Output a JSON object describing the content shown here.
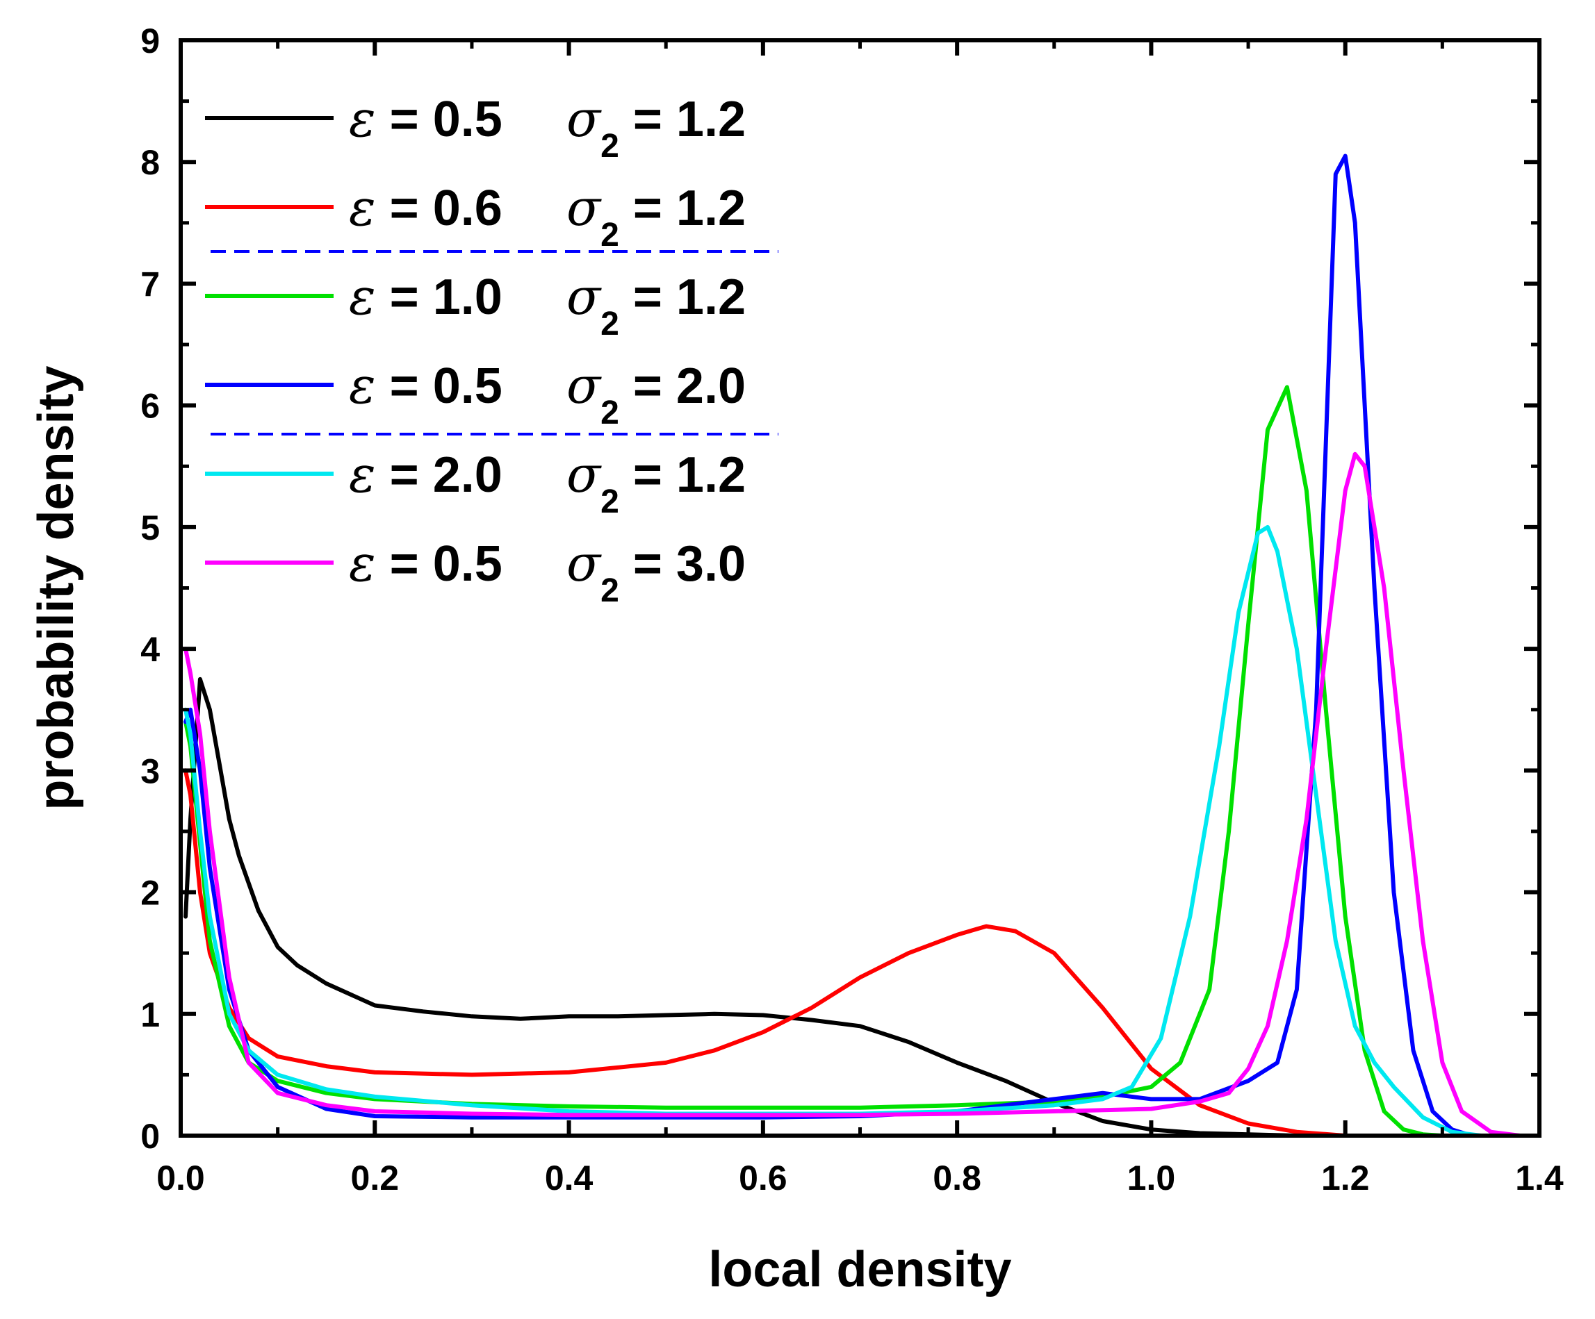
{
  "chart_data": {
    "type": "line",
    "title": "",
    "xlabel": "local density",
    "ylabel": "probability density",
    "xlim": [
      0.0,
      1.4
    ],
    "ylim": [
      0,
      9
    ],
    "xticks": [
      "0.0",
      "0.2",
      "0.4",
      "0.6",
      "0.8",
      "1.0",
      "1.2",
      "1.4"
    ],
    "yticks": [
      "0",
      "1",
      "2",
      "3",
      "4",
      "5",
      "6",
      "7",
      "8",
      "9"
    ],
    "legend_position": "top-left",
    "legend_separators": "dashed blue lines after the 2nd and 4th entries",
    "series": [
      {
        "name": "ε = 0.5 σ2 = 1.2",
        "eps": "0.5",
        "sigma2": "1.2",
        "color": "#000000",
        "x": [
          0.005,
          0.01,
          0.02,
          0.03,
          0.04,
          0.05,
          0.06,
          0.08,
          0.1,
          0.12,
          0.15,
          0.2,
          0.25,
          0.3,
          0.35,
          0.4,
          0.45,
          0.5,
          0.55,
          0.6,
          0.65,
          0.7,
          0.75,
          0.8,
          0.85,
          0.9,
          0.95,
          1.0,
          1.05,
          1.1,
          1.15,
          1.2
        ],
        "y": [
          1.8,
          2.6,
          3.75,
          3.5,
          3.05,
          2.6,
          2.3,
          1.85,
          1.55,
          1.4,
          1.25,
          1.07,
          1.02,
          0.98,
          0.96,
          0.98,
          0.98,
          0.99,
          1.0,
          0.99,
          0.95,
          0.9,
          0.77,
          0.6,
          0.45,
          0.27,
          0.12,
          0.05,
          0.02,
          0.01,
          0.0,
          0.0
        ]
      },
      {
        "name": "ε = 0.6 σ2 = 1.2",
        "eps": "0.6",
        "sigma2": "1.2",
        "color": "#ff0000",
        "x": [
          0.005,
          0.01,
          0.02,
          0.03,
          0.05,
          0.07,
          0.1,
          0.15,
          0.2,
          0.3,
          0.4,
          0.5,
          0.55,
          0.6,
          0.65,
          0.7,
          0.75,
          0.8,
          0.83,
          0.86,
          0.9,
          0.95,
          1.0,
          1.05,
          1.1,
          1.15,
          1.2
        ],
        "y": [
          3.0,
          2.8,
          2.0,
          1.5,
          1.05,
          0.8,
          0.65,
          0.57,
          0.52,
          0.5,
          0.52,
          0.6,
          0.7,
          0.85,
          1.05,
          1.3,
          1.5,
          1.65,
          1.72,
          1.68,
          1.5,
          1.05,
          0.55,
          0.25,
          0.1,
          0.03,
          0.0
        ]
      },
      {
        "name": "ε = 1.0 σ2 = 1.2",
        "eps": "1.0",
        "sigma2": "1.2",
        "color": "#00e000",
        "x": [
          0.005,
          0.01,
          0.02,
          0.03,
          0.05,
          0.07,
          0.1,
          0.15,
          0.2,
          0.3,
          0.4,
          0.5,
          0.6,
          0.7,
          0.8,
          0.9,
          0.95,
          1.0,
          1.03,
          1.06,
          1.08,
          1.1,
          1.12,
          1.14,
          1.16,
          1.18,
          1.2,
          1.22,
          1.24,
          1.26,
          1.28,
          1.3
        ],
        "y": [
          3.4,
          3.2,
          2.4,
          1.6,
          0.9,
          0.6,
          0.45,
          0.35,
          0.3,
          0.26,
          0.24,
          0.23,
          0.23,
          0.23,
          0.25,
          0.28,
          0.32,
          0.4,
          0.6,
          1.2,
          2.5,
          4.2,
          5.8,
          6.15,
          5.3,
          3.5,
          1.8,
          0.7,
          0.2,
          0.05,
          0.01,
          0.0
        ]
      },
      {
        "name": "ε = 0.5 σ2 = 2.0",
        "eps": "0.5",
        "sigma2": "2.0",
        "color": "#0000ff",
        "x": [
          0.005,
          0.01,
          0.02,
          0.03,
          0.05,
          0.07,
          0.1,
          0.15,
          0.2,
          0.3,
          0.4,
          0.5,
          0.6,
          0.7,
          0.8,
          0.9,
          0.95,
          1.0,
          1.05,
          1.1,
          1.13,
          1.15,
          1.17,
          1.19,
          1.2,
          1.21,
          1.23,
          1.25,
          1.27,
          1.29,
          1.31,
          1.33
        ],
        "y": [
          3.4,
          3.5,
          3.0,
          2.2,
          1.2,
          0.7,
          0.4,
          0.22,
          0.16,
          0.15,
          0.15,
          0.15,
          0.15,
          0.16,
          0.2,
          0.3,
          0.35,
          0.3,
          0.3,
          0.45,
          0.6,
          1.2,
          3.5,
          7.9,
          8.05,
          7.5,
          4.5,
          2.0,
          0.7,
          0.2,
          0.05,
          0.0
        ]
      },
      {
        "name": "ε = 2.0 σ2 = 1.2",
        "eps": "2.0",
        "sigma2": "1.2",
        "color": "#00e8f0",
        "x": [
          0.005,
          0.01,
          0.02,
          0.03,
          0.05,
          0.07,
          0.1,
          0.15,
          0.2,
          0.3,
          0.4,
          0.5,
          0.6,
          0.7,
          0.8,
          0.9,
          0.95,
          0.98,
          1.01,
          1.04,
          1.07,
          1.09,
          1.11,
          1.12,
          1.13,
          1.15,
          1.17,
          1.19,
          1.21,
          1.23,
          1.25,
          1.28,
          1.31,
          1.34
        ],
        "y": [
          3.5,
          3.3,
          2.5,
          1.8,
          1.0,
          0.7,
          0.5,
          0.38,
          0.32,
          0.25,
          0.2,
          0.18,
          0.18,
          0.18,
          0.2,
          0.25,
          0.3,
          0.4,
          0.8,
          1.8,
          3.2,
          4.3,
          4.95,
          5.0,
          4.8,
          4.0,
          2.8,
          1.6,
          0.9,
          0.6,
          0.4,
          0.15,
          0.03,
          0.0
        ]
      },
      {
        "name": "ε = 0.5 σ2 = 3.0",
        "eps": "0.5",
        "sigma2": "3.0",
        "color": "#ff00ff",
        "x": [
          0.005,
          0.01,
          0.02,
          0.03,
          0.05,
          0.07,
          0.1,
          0.15,
          0.2,
          0.3,
          0.4,
          0.5,
          0.6,
          0.7,
          0.8,
          0.9,
          1.0,
          1.05,
          1.08,
          1.1,
          1.12,
          1.14,
          1.16,
          1.18,
          1.2,
          1.21,
          1.22,
          1.24,
          1.26,
          1.28,
          1.3,
          1.32,
          1.35,
          1.38
        ],
        "y": [
          4.0,
          3.8,
          3.3,
          2.5,
          1.3,
          0.6,
          0.35,
          0.25,
          0.2,
          0.18,
          0.17,
          0.17,
          0.17,
          0.17,
          0.18,
          0.2,
          0.22,
          0.28,
          0.35,
          0.55,
          0.9,
          1.6,
          2.6,
          4.0,
          5.3,
          5.6,
          5.5,
          4.5,
          3.0,
          1.6,
          0.6,
          0.2,
          0.03,
          0.0
        ]
      }
    ]
  }
}
